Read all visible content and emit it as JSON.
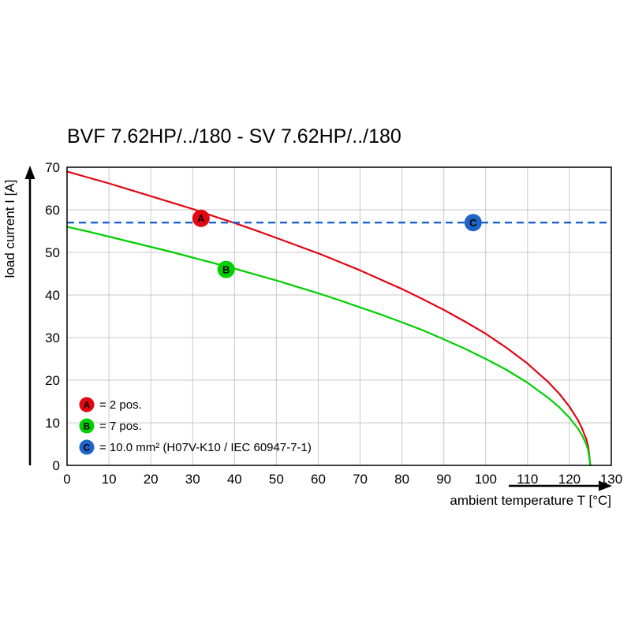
{
  "chart_data": {
    "type": "line",
    "title": "BVF 7.62HP/../180 - SV 7.62HP/../180",
    "xlabel": "ambient temperature T [°C]",
    "ylabel": "load current I [A]",
    "xlim": [
      0,
      130
    ],
    "ylim": [
      0,
      70
    ],
    "x_ticks": [
      0,
      10,
      20,
      30,
      40,
      50,
      60,
      70,
      80,
      90,
      100,
      110,
      120,
      130
    ],
    "y_ticks": [
      0,
      10,
      20,
      30,
      40,
      50,
      60,
      70
    ],
    "grid": true,
    "legend_position": "bottom-left-inside",
    "colors": {
      "red": "#e30613",
      "green": "#00d000",
      "blue": "#1f64c8",
      "grid": "#c8c8c8",
      "frame": "#000000",
      "text": "#000000",
      "marker_letter": "#ffffff"
    },
    "x": [
      0,
      5,
      10,
      15,
      20,
      25,
      30,
      35,
      40,
      45,
      50,
      55,
      60,
      65,
      70,
      75,
      80,
      85,
      90,
      95,
      100,
      105,
      110,
      115,
      117.5,
      120,
      122,
      123,
      124,
      124.5,
      125
    ],
    "series": [
      {
        "id": "A",
        "kind": "curve",
        "legend_label": "= 2 pos.",
        "color": "#e30613",
        "style": "solid",
        "values": [
          69,
          67.6,
          66.2,
          64.7,
          63.2,
          61.7,
          60.2,
          58.5,
          56.9,
          55.2,
          53.4,
          51.6,
          49.8,
          47.8,
          45.8,
          43.6,
          41.4,
          39,
          36.5,
          33.8,
          30.9,
          27.6,
          23.9,
          19.5,
          16.9,
          13.8,
          10.7,
          8.7,
          6.2,
          4.4,
          0
        ],
        "marker": {
          "x": 32,
          "y": 58,
          "label": "A"
        }
      },
      {
        "id": "B",
        "kind": "curve",
        "legend_label": "= 7 pos.",
        "color": "#00d000",
        "style": "solid",
        "values": [
          56,
          54.9,
          53.7,
          52.5,
          51.3,
          50.1,
          48.8,
          47.5,
          46.2,
          44.8,
          43.4,
          41.9,
          40.4,
          38.8,
          37.1,
          35.4,
          33.6,
          31.7,
          29.6,
          27.4,
          25,
          22.4,
          19.4,
          15.8,
          13.7,
          11.2,
          8.7,
          7.1,
          5,
          3.5,
          0
        ],
        "marker": {
          "x": 38,
          "y": 46,
          "label": "B"
        }
      },
      {
        "id": "C",
        "kind": "hline",
        "legend_label": "= 10.0 mm² (H07V-K10 / IEC 60947-7-1)",
        "color": "#1f64c8",
        "style": "dashed",
        "value": 57,
        "marker": {
          "x": 97,
          "y": 57,
          "label": "C"
        }
      }
    ]
  }
}
